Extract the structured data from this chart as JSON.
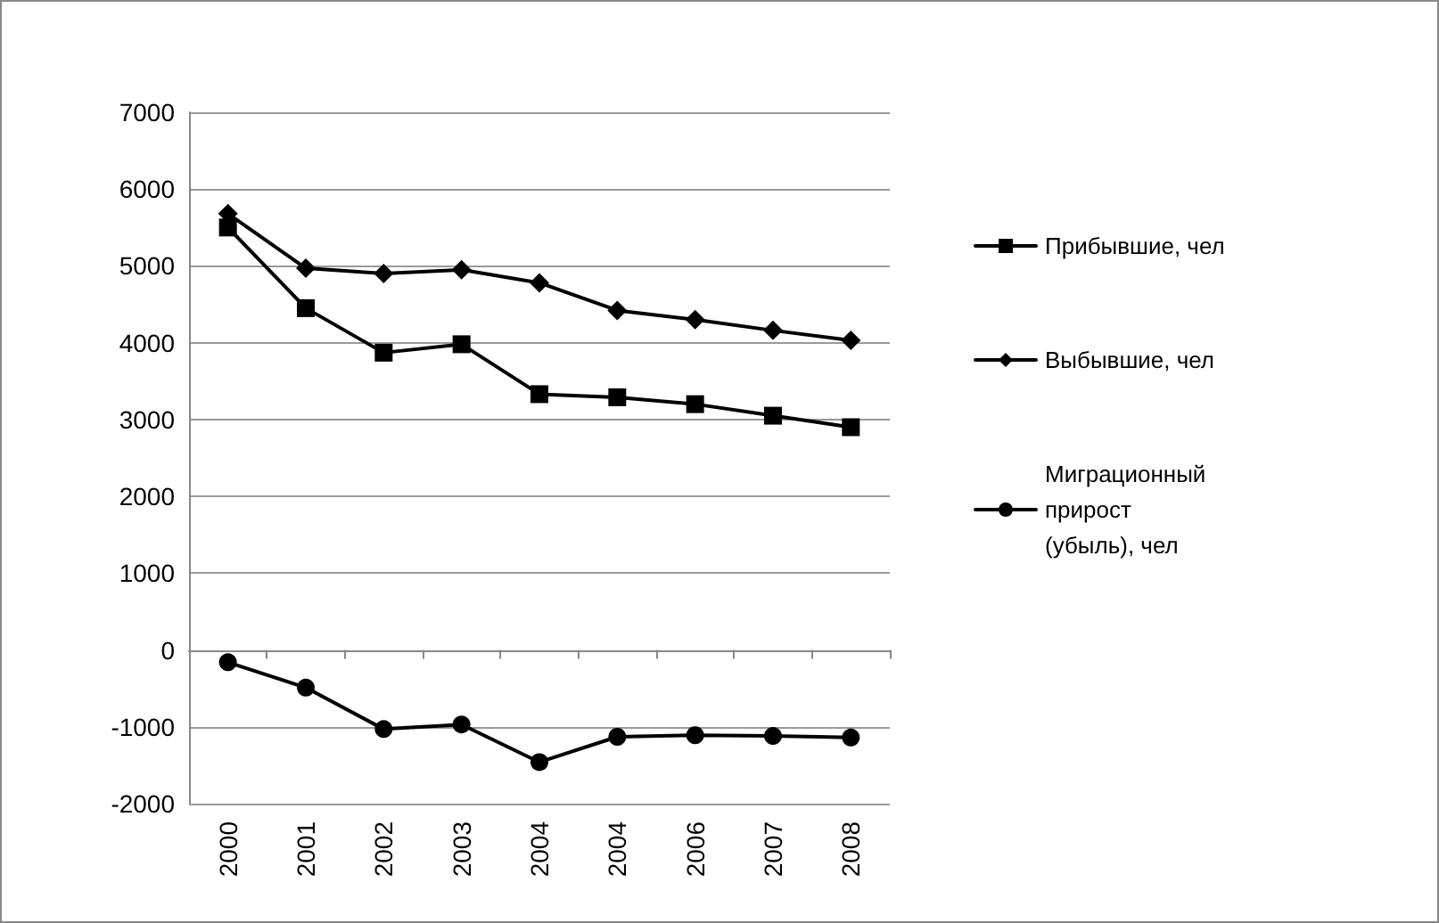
{
  "chart_data": {
    "type": "line",
    "categories": [
      "2000",
      "2001",
      "2002",
      "2003",
      "2004",
      "2004",
      "2006",
      "2007",
      "2008"
    ],
    "series": [
      {
        "name": "Прибывшие, чел",
        "color": "#000000",
        "marker": "square",
        "values": [
          5500,
          4450,
          3870,
          3980,
          3330,
          3290,
          3200,
          3050,
          2900
        ]
      },
      {
        "name": "Выбывшие, чел",
        "color": "#000000",
        "marker": "diamond",
        "values": [
          5680,
          4970,
          4900,
          4950,
          4780,
          4420,
          4300,
          4160,
          4030
        ]
      },
      {
        "name": "Миграционный прирост (убыль), чел",
        "color": "#000000",
        "marker": "circle",
        "values": [
          -160,
          -490,
          -1030,
          -970,
          -1460,
          -1130,
          -1110,
          -1120,
          -1140
        ]
      }
    ],
    "ylim": [
      -2000,
      7000
    ],
    "yticks": [
      -2000,
      -1000,
      0,
      1000,
      2000,
      3000,
      4000,
      5000,
      6000,
      7000
    ],
    "grid": "y",
    "legend": "right",
    "line_style": "solid"
  }
}
